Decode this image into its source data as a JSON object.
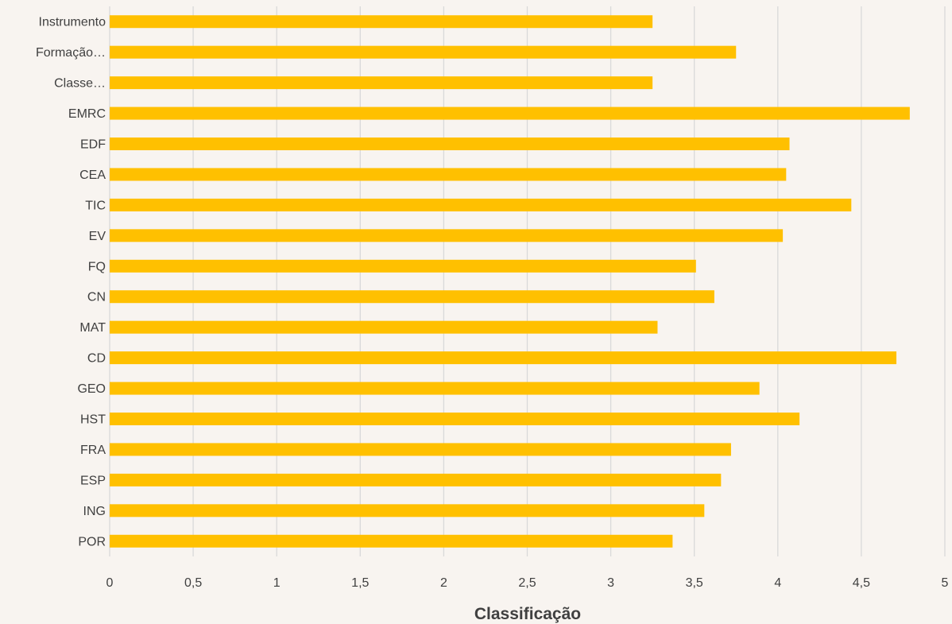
{
  "chart_data": {
    "type": "bar",
    "orientation": "horizontal",
    "categories": [
      "POR",
      "ING",
      "ESP",
      "FRA",
      "HST",
      "GEO",
      "CD",
      "MAT",
      "CN",
      "FQ",
      "EV",
      "TIC",
      "CEA",
      "EDF",
      "EMRC",
      "Classe…",
      "Formação…",
      "Instrumento"
    ],
    "values": [
      3.37,
      3.56,
      3.66,
      3.72,
      4.13,
      3.89,
      4.71,
      3.28,
      3.62,
      3.51,
      4.03,
      4.44,
      4.05,
      4.07,
      4.79,
      3.25,
      3.75,
      3.25
    ],
    "xlabel": "Classificação",
    "ylabel": "",
    "xlim": [
      0,
      5
    ],
    "ticks": [
      "0",
      "0,5",
      "1",
      "1,5",
      "2",
      "2,5",
      "3",
      "3,5",
      "4",
      "4,5",
      "5"
    ],
    "tick_values": [
      0,
      0.5,
      1,
      1.5,
      2,
      2.5,
      3,
      3.5,
      4,
      4.5,
      5
    ],
    "grid": "vertical",
    "legend": "none",
    "bar_color": "#ffc000",
    "grid_color": "#d9d9d9",
    "background_color": "#f8f4f0"
  }
}
